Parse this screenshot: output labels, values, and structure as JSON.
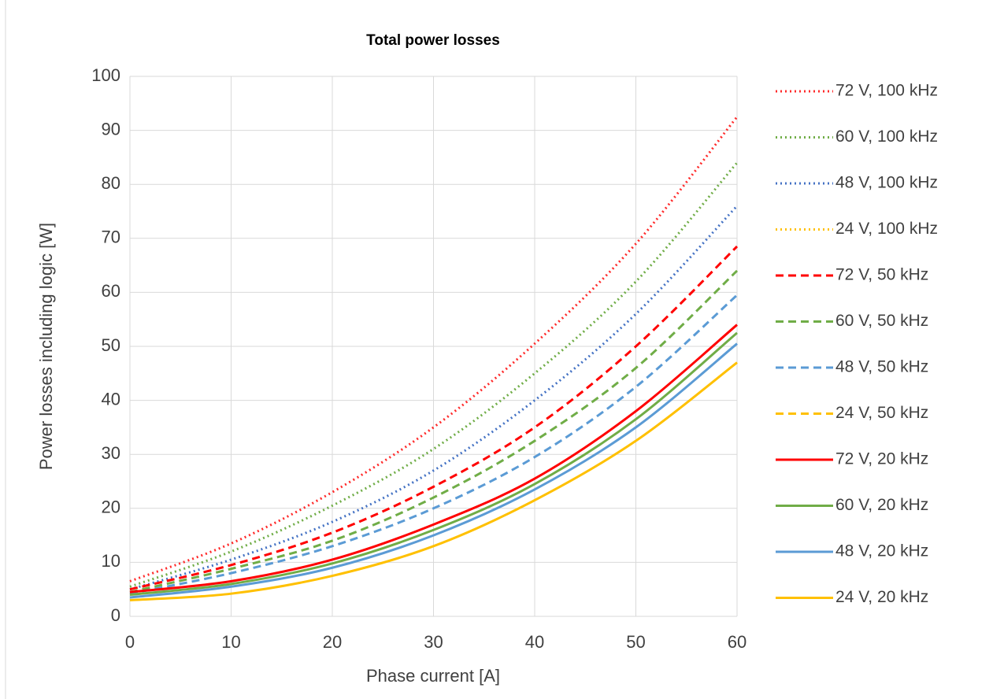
{
  "chart_data": {
    "type": "line",
    "title": "Total power losses",
    "xlabel": "Phase current [A]",
    "ylabel": "Power losses including logic [W]",
    "x": [
      0,
      10,
      20,
      30,
      40,
      50,
      60
    ],
    "xlim": [
      0,
      60
    ],
    "xticks": [
      0,
      10,
      20,
      30,
      40,
      50,
      60
    ],
    "ylim": [
      0,
      100
    ],
    "yticks": [
      0,
      10,
      20,
      30,
      40,
      50,
      60,
      70,
      80,
      90,
      100
    ],
    "grid": true,
    "legend": "right",
    "series": [
      {
        "name": "72 V, 100 kHz",
        "color": "#ff2a2a",
        "dash": "dotted",
        "values": [
          6.5,
          13.5,
          23,
          35,
          50.5,
          69,
          92.5
        ]
      },
      {
        "name": "60 V, 100 kHz",
        "color": "#70ad47",
        "dash": "dotted",
        "values": [
          5.5,
          12,
          20.5,
          31,
          45,
          62,
          84
        ]
      },
      {
        "name": "48 V, 100 kHz",
        "color": "#4472c4",
        "dash": "dotted",
        "values": [
          5,
          10.5,
          17.5,
          27,
          40,
          56,
          76
        ]
      },
      {
        "name": "24 V, 100 kHz",
        "color": "#ffc000",
        "dash": "dotted",
        "values": [
          null,
          null,
          null,
          null,
          null,
          null,
          null
        ]
      },
      {
        "name": "72 V, 50 kHz",
        "color": "#ff0000",
        "dash": "dashed",
        "values": [
          5,
          9.5,
          15.5,
          24,
          35,
          50,
          68.5
        ]
      },
      {
        "name": "60 V, 50 kHz",
        "color": "#70ad47",
        "dash": "dashed",
        "values": [
          4.5,
          8.8,
          14,
          22,
          32.5,
          46,
          64
        ]
      },
      {
        "name": "48 V, 50 kHz",
        "color": "#5b9bd5",
        "dash": "dashed",
        "values": [
          4.2,
          8,
          13,
          20,
          29.5,
          42.5,
          59.5
        ]
      },
      {
        "name": "24 V, 50 kHz",
        "color": "#ffc000",
        "dash": "dashed",
        "values": [
          null,
          null,
          null,
          null,
          null,
          null,
          null
        ]
      },
      {
        "name": "72 V, 20 kHz",
        "color": "#ff0000",
        "dash": "solid",
        "values": [
          4.5,
          6.5,
          10.5,
          17,
          25.5,
          38,
          54
        ]
      },
      {
        "name": "60 V, 20 kHz",
        "color": "#70ad47",
        "dash": "solid",
        "values": [
          4,
          6,
          9.8,
          16,
          24.5,
          36.5,
          52.5
        ]
      },
      {
        "name": "48 V, 20 kHz",
        "color": "#5b9bd5",
        "dash": "solid",
        "values": [
          3.5,
          5.5,
          9,
          15,
          23.5,
          35,
          50.5
        ]
      },
      {
        "name": "24 V, 20 kHz",
        "color": "#ffc000",
        "dash": "solid",
        "values": [
          3,
          4.2,
          7.5,
          13,
          21.5,
          32.5,
          47
        ]
      }
    ]
  }
}
